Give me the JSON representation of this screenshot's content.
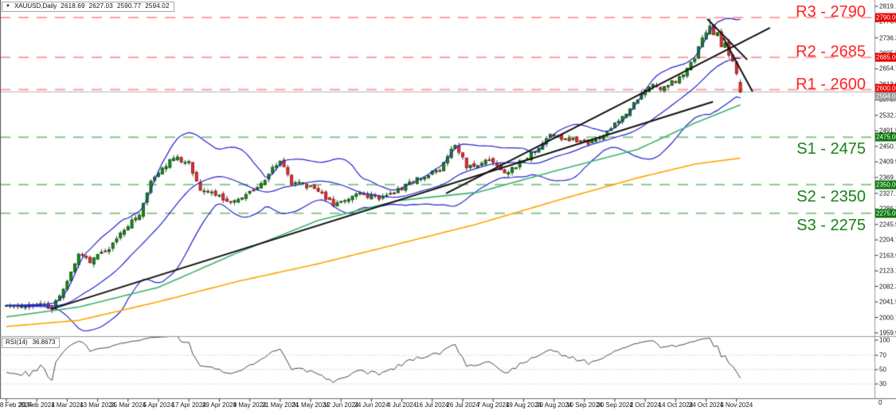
{
  "title": {
    "arrow_icon": "▼",
    "symbol": "XAUUSD,Daily",
    "open": "2618.69",
    "high": "2627.03",
    "low": "2590.77",
    "close": "2594.02"
  },
  "levels": [
    {
      "id": "R3",
      "label": "R3 - 2790",
      "price": 2790,
      "type": "resistance"
    },
    {
      "id": "R2",
      "label": "R2 - 2685",
      "price": 2685,
      "type": "resistance"
    },
    {
      "id": "R1",
      "label": "R1 - 2600",
      "price": 2600,
      "type": "resistance"
    },
    {
      "id": "S1",
      "label": "S1 - 2475",
      "price": 2475,
      "type": "support"
    },
    {
      "id": "S2",
      "label": "S2 - 2350",
      "price": 2350,
      "type": "support"
    },
    {
      "id": "S3",
      "label": "S3 - 2275",
      "price": 2275,
      "type": "support"
    }
  ],
  "price_axis": {
    "ticks": [
      "2819.10",
      "2778.30",
      "2736.30",
      "2695.50",
      "2654.70",
      "2613.90",
      "2573.10",
      "2532.30",
      "2491.50",
      "2450.70",
      "2409.90",
      "2369.10",
      "2327.10",
      "2286.30",
      "2245.50",
      "2204.70",
      "2163.90",
      "2123.10",
      "2082.30",
      "2041.50",
      "2000.70",
      "1959.90"
    ],
    "badges": [
      {
        "text": "2790.00",
        "price": 2790,
        "bg": "#e60000",
        "dy": 0
      },
      {
        "text": "2685.00",
        "price": 2685,
        "bg": "#e60000",
        "dy": 0
      },
      {
        "text": "2600.00",
        "price": 2600,
        "bg": "#e60000",
        "dy": -2
      },
      {
        "text": "2594.02",
        "price": 2594.02,
        "bg": "#9a9a9a",
        "dy": 6
      },
      {
        "text": "2475.00",
        "price": 2475,
        "bg": "#0e7a0e",
        "dy": 0
      },
      {
        "text": "2350.00",
        "price": 2350,
        "bg": "#0e7a0e",
        "dy": 0
      },
      {
        "text": "2275.00",
        "price": 2275,
        "bg": "#0e7a0e",
        "dy": 0
      }
    ]
  },
  "time_axis": {
    "labels": [
      "8 Feb 2024",
      "20 Feb 2024",
      "1 Mar 2024",
      "13 Mar 2024",
      "25 Mar 2024",
      "5 Apr 2024",
      "17 Apr 2024",
      "29 Apr 2024",
      "9 May 2024",
      "21 May 2024",
      "31 May 2024",
      "12 Jun 2024",
      "24 Jun 2024",
      "4 Jul 2024",
      "16 Jul 2024",
      "26 Jul 2024",
      "7 Aug 2024",
      "19 Aug 2024",
      "29 Aug 2024",
      "10 Sep 2024",
      "20 Sep 2024",
      "2 Oct 2024",
      "14 Oct 2024",
      "24 Oct 2024",
      "5 Nov 2024"
    ]
  },
  "rsi": {
    "name": "RSI(14)",
    "value": "36.8673",
    "scale_labels": [
      "100",
      "70",
      "50",
      "30"
    ],
    "scale_values": [
      100,
      70,
      50,
      30
    ],
    "scale_bottom": "0",
    "dotted_levels": [
      70,
      50,
      30
    ]
  },
  "chart_data": {
    "type": "candlestick",
    "symbol": "XAUUSD",
    "timeframe": "Daily",
    "title": "XAUUSD,Daily",
    "last_candle": {
      "open": 2618.69,
      "high": 2627.03,
      "low": 2590.77,
      "close": 2594.02
    },
    "x_range": {
      "start_label": "8 Feb 2024",
      "end_label": "5 Nov 2024",
      "bars": 194
    },
    "y_range": [
      1959.9,
      2819.1
    ],
    "close_path_anchors": [
      [
        0,
        2030
      ],
      [
        4,
        2026
      ],
      [
        8,
        2038
      ],
      [
        12,
        2020
      ],
      [
        14,
        2060
      ],
      [
        17,
        2115
      ],
      [
        19,
        2165
      ],
      [
        22,
        2150
      ],
      [
        26,
        2172
      ],
      [
        31,
        2235
      ],
      [
        35,
        2270
      ],
      [
        38,
        2355
      ],
      [
        44,
        2422
      ],
      [
        48,
        2405
      ],
      [
        51,
        2335
      ],
      [
        54,
        2325
      ],
      [
        57,
        2315
      ],
      [
        59,
        2300
      ],
      [
        65,
        2335
      ],
      [
        68,
        2365
      ],
      [
        72,
        2415
      ],
      [
        75,
        2355
      ],
      [
        80,
        2345
      ],
      [
        86,
        2300
      ],
      [
        92,
        2325
      ],
      [
        99,
        2315
      ],
      [
        104,
        2340
      ],
      [
        108,
        2365
      ],
      [
        114,
        2390
      ],
      [
        118,
        2455
      ],
      [
        121,
        2400
      ],
      [
        124,
        2395
      ],
      [
        127,
        2418
      ],
      [
        131,
        2380
      ],
      [
        137,
        2420
      ],
      [
        143,
        2480
      ],
      [
        148,
        2470
      ],
      [
        153,
        2460
      ],
      [
        159,
        2495
      ],
      [
        166,
        2575
      ],
      [
        170,
        2615
      ],
      [
        172,
        2600
      ],
      [
        177,
        2630
      ],
      [
        181,
        2685
      ],
      [
        183,
        2735
      ],
      [
        185,
        2772
      ],
      [
        186,
        2745
      ],
      [
        187,
        2756
      ],
      [
        188,
        2712
      ],
      [
        189,
        2722
      ],
      [
        190,
        2692
      ],
      [
        191,
        2680
      ],
      [
        192,
        2640
      ],
      [
        193,
        2594.02
      ]
    ],
    "noise": {
      "seed": 20241108,
      "close_jitter": 6,
      "wick": 9,
      "gap": 4
    },
    "peak_touch": {
      "bar": 185,
      "high": 2788
    },
    "indicators": {
      "bollinger": {
        "period": 20,
        "deviation": 2,
        "color": "#2525cd"
      },
      "ma_fast": {
        "color": "#3cb371",
        "points": [
          [
            0,
            2002
          ],
          [
            19,
            2028
          ],
          [
            40,
            2080
          ],
          [
            61,
            2172
          ],
          [
            82,
            2256
          ],
          [
            103,
            2308
          ],
          [
            124,
            2330
          ],
          [
            145,
            2388
          ],
          [
            166,
            2443
          ],
          [
            181,
            2512
          ],
          [
            193,
            2560
          ]
        ]
      },
      "ma_slow": {
        "color": "#ffa500",
        "points": [
          [
            0,
            1977
          ],
          [
            19,
            1993
          ],
          [
            40,
            2042
          ],
          [
            61,
            2096
          ],
          [
            82,
            2142
          ],
          [
            103,
            2194
          ],
          [
            124,
            2247
          ],
          [
            145,
            2309
          ],
          [
            166,
            2368
          ],
          [
            181,
            2404
          ],
          [
            193,
            2420
          ]
        ]
      },
      "rsi": {
        "period": 14,
        "last_value": 36.8673,
        "color": "#4a4a4a"
      }
    },
    "overlays": {
      "trendlines": [
        {
          "from": [
            11.9,
            2023
          ],
          "to": [
            185.8,
            2568
          ],
          "color": "#111111",
          "width": 2
        },
        {
          "from": [
            115.6,
            2327
          ],
          "to": [
            200.8,
            2763
          ],
          "color": "#111111",
          "width": 2
        }
      ],
      "annotation_lines": [
        {
          "from": [
            184.3,
            2786
          ],
          "to": [
            194.8,
            2679
          ],
          "color": "#111111",
          "width": 2
        },
        {
          "from": [
            188.5,
            2737
          ],
          "to": [
            196.2,
            2595
          ],
          "color": "#111111",
          "width": 2
        }
      ],
      "sr_dash": {
        "resistance_color": "#ff9f9f",
        "support_color": "#8cc68c",
        "dash": [
          13,
          10
        ],
        "width": 2
      },
      "current_price_line": {
        "price": 2594.02,
        "color": "#b4b4b4"
      }
    },
    "colors": {
      "bull": "#1a8c1a",
      "bull_border": "#0d5c0d",
      "bear": "#d93636",
      "bear_border": "#9e1a1a",
      "wick": "#3c3c3c",
      "background": "#ffffff",
      "axis_text": "#1a1a1a",
      "resistance_text": "#ff2222",
      "support_text": "#168416"
    }
  }
}
